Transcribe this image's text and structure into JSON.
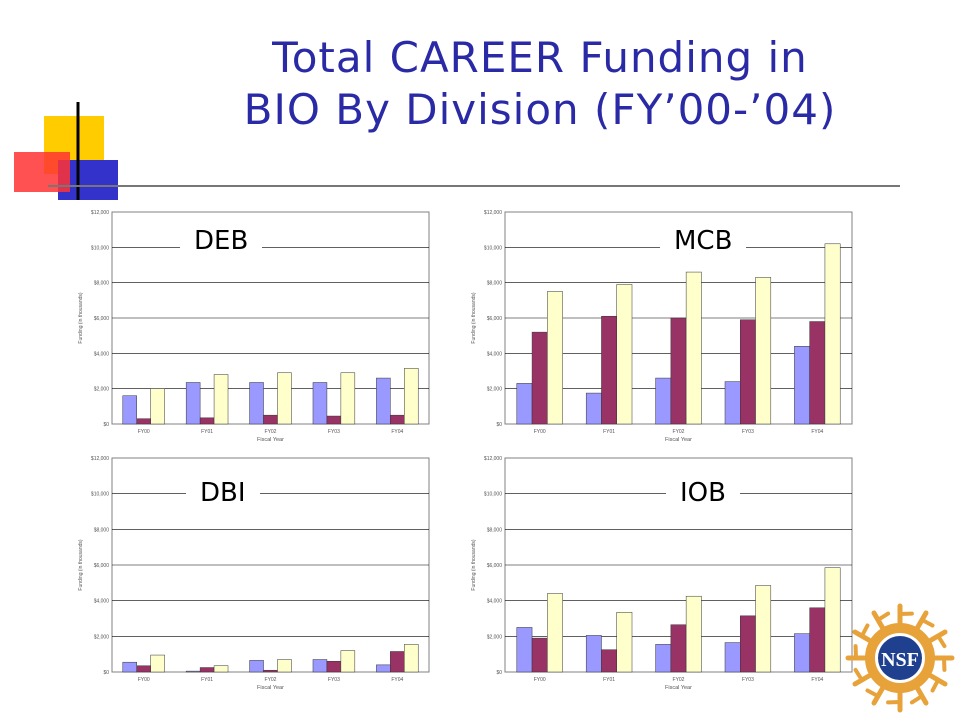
{
  "slide": {
    "title_line1": "Total CAREER Funding in",
    "title_line2": "BIO By Division (FY’00-’04)"
  },
  "logo": {
    "text": "NSF"
  },
  "colors": {
    "title": "#2a2aa6",
    "series": [
      "#9999ff",
      "#993366",
      "#ffffcc"
    ],
    "deco_yellow": "#ffcc00",
    "deco_blue": "#3333cc",
    "deco_red": "#ff3333",
    "logo_orange": "#e8a23a",
    "logo_navy": "#1f3f8f"
  },
  "chart_data": [
    {
      "type": "bar",
      "label": "DEB",
      "categories": [
        "FY00",
        "FY01",
        "FY02",
        "FY03",
        "FY04"
      ],
      "series": [
        {
          "values": [
            1600,
            2350,
            2350,
            2350,
            2600
          ]
        },
        {
          "values": [
            300,
            350,
            500,
            450,
            500
          ]
        },
        {
          "values": [
            2000,
            2800,
            2900,
            2900,
            3150
          ]
        }
      ],
      "ylim": [
        0,
        12000
      ],
      "yticks": [
        "$0",
        "$2,000",
        "$4,000",
        "$6,000",
        "$8,000",
        "$10,000",
        "$12,000"
      ],
      "xlabel": "Fiscal Year",
      "ylabel": "Funding (in thousands)",
      "grid": true
    },
    {
      "type": "bar",
      "label": "MCB",
      "categories": [
        "FY00",
        "FY01",
        "FY02",
        "FY03",
        "FY04"
      ],
      "series": [
        {
          "values": [
            2300,
            1750,
            2600,
            2400,
            4400
          ]
        },
        {
          "values": [
            5200,
            6100,
            6000,
            5900,
            5800
          ]
        },
        {
          "values": [
            7500,
            7900,
            8600,
            8300,
            10200
          ]
        }
      ],
      "ylim": [
        0,
        12000
      ],
      "yticks": [
        "$0",
        "$2,000",
        "$4,000",
        "$6,000",
        "$8,000",
        "$10,000",
        "$12,000"
      ],
      "xlabel": "Fiscal Year",
      "ylabel": "Funding (in thousands)",
      "grid": true
    },
    {
      "type": "bar",
      "label": "DBI",
      "categories": [
        "FY00",
        "FY01",
        "FY02",
        "FY03",
        "FY04"
      ],
      "series": [
        {
          "values": [
            550,
            50,
            650,
            700,
            400
          ]
        },
        {
          "values": [
            350,
            250,
            100,
            600,
            1150
          ]
        },
        {
          "values": [
            950,
            350,
            700,
            1200,
            1550
          ]
        }
      ],
      "ylim": [
        0,
        12000
      ],
      "yticks": [
        "$0",
        "$2,000",
        "$4,000",
        "$6,000",
        "$8,000",
        "$10,000",
        "$12,000"
      ],
      "xlabel": "Fiscal Year",
      "ylabel": "Funding (in thousands)",
      "grid": true
    },
    {
      "type": "bar",
      "label": "IOB",
      "categories": [
        "FY00",
        "FY01",
        "FY02",
        "FY03",
        "FY04"
      ],
      "series": [
        {
          "values": [
            2500,
            2050,
            1550,
            1650,
            2150
          ]
        },
        {
          "values": [
            1900,
            1250,
            2650,
            3150,
            3600
          ]
        },
        {
          "values": [
            4400,
            3350,
            4250,
            4850,
            5850
          ]
        }
      ],
      "ylim": [
        0,
        12000
      ],
      "yticks": [
        "$0",
        "$2,000",
        "$4,000",
        "$6,000",
        "$8,000",
        "$10,000",
        "$12,000"
      ],
      "xlabel": "Fiscal Year",
      "ylabel": "Funding (in thousands)",
      "grid": true
    }
  ]
}
